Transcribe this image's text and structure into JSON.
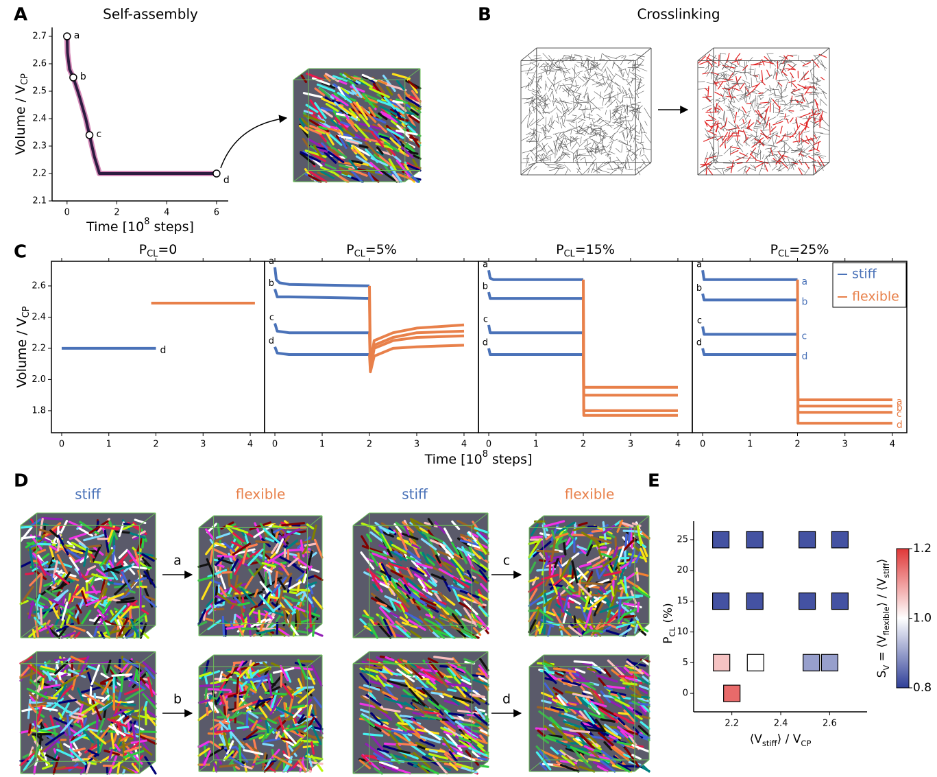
{
  "panels": {
    "labels": [
      "A",
      "B",
      "C",
      "D",
      "E"
    ]
  },
  "panel_b": {
    "title": "Crosslinking"
  },
  "panel_c": {
    "x_label": [
      "Time [10",
      "8",
      " steps]"
    ],
    "y_label": [
      "Volume / V",
      "CP"
    ]
  },
  "panel_d": {
    "headings": [
      "stiff",
      "flexible",
      "stiff",
      "flexible"
    ],
    "arrows": [
      "a",
      "b",
      "c",
      "d"
    ]
  },
  "chart_data": [
    {
      "type": "line",
      "title": "Self-assembly",
      "x_label": [
        "Time [10",
        "8",
        " steps]"
      ],
      "y_label": [
        "Volume / V",
        "CP"
      ],
      "xlim": [
        -0.6,
        6.47
      ],
      "ylim": [
        2.1,
        2.7325
      ],
      "xticks": [
        0,
        2,
        4,
        6
      ],
      "yticks": [
        2.1,
        2.2,
        2.3,
        2.4,
        2.5,
        2.6,
        2.7
      ],
      "series": [
        {
          "color": "#2d1b40",
          "x": [
            0,
            0.02,
            0.1,
            0.25,
            0.5,
            0.75,
            0.9,
            1.1,
            1.3,
            1.5,
            2,
            3,
            4,
            5,
            6
          ],
          "values": [
            2.7,
            2.64,
            2.58,
            2.55,
            2.48,
            2.4,
            2.34,
            2.26,
            2.2,
            2.2,
            2.2,
            2.2,
            2.2,
            2.2,
            2.2
          ]
        }
      ],
      "points": {
        "x": [
          0,
          0.25,
          0.9,
          6
        ],
        "values": [
          2.7,
          2.55,
          2.34,
          2.2
        ],
        "labels": [
          "a",
          "b",
          "c",
          "d"
        ]
      }
    },
    {
      "type": "line",
      "title": [
        "P",
        "CL",
        "=0"
      ],
      "xlim": [
        -0.218,
        4.305
      ],
      "ylim": [
        1.659,
        2.758
      ],
      "xticks": [
        0,
        1,
        2,
        3,
        4
      ],
      "yticks": [
        1.8,
        {
          "value": 2,
          "label": "2.0"
        },
        2.2,
        2.4,
        2.6
      ],
      "series": [
        {
          "name": "stiff",
          "color": "#4a72b8",
          "labels_at": [
            "right"
          ],
          "label_color": "#000000",
          "curves": [
            {
              "label": "d",
              "x": [
                0,
                2
              ],
              "values": [
                2.2,
                2.2
              ]
            }
          ]
        },
        {
          "name": "flexible",
          "color": "#e8804a",
          "labels_at": [],
          "curves": [
            {
              "x": [
                1.9,
                4.1
              ],
              "values": [
                2.49,
                2.49
              ]
            }
          ]
        }
      ]
    },
    {
      "type": "line",
      "title": [
        "P",
        "CL",
        "=5%"
      ],
      "xlim": [
        -0.218,
        4.305
      ],
      "ylim": [
        1.659,
        2.758
      ],
      "xticks": [
        0,
        1,
        2,
        3,
        4
      ],
      "series": [
        {
          "name": "stiff",
          "color": "#4a72b8",
          "labels_at": [
            "left"
          ],
          "curves": [
            {
              "label": "a",
              "x": [
                0,
                0.03,
                0.1,
                0.3,
                2
              ],
              "values": [
                2.72,
                2.64,
                2.62,
                2.61,
                2.6
              ]
            },
            {
              "label": "b",
              "x": [
                0,
                0.05,
                0.3,
                2
              ],
              "values": [
                2.58,
                2.53,
                2.53,
                2.52
              ]
            },
            {
              "label": "c",
              "x": [
                0,
                0.05,
                0.3,
                2
              ],
              "values": [
                2.36,
                2.31,
                2.3,
                2.3
              ]
            },
            {
              "label": "d",
              "x": [
                0,
                0.05,
                0.3,
                2
              ],
              "values": [
                2.21,
                2.17,
                2.16,
                2.16
              ]
            }
          ]
        },
        {
          "name": "flexible",
          "color": "#e8804a",
          "labels_at": [],
          "curves": [
            {
              "x": [
                2,
                2.02,
                2.1,
                2.5,
                3,
                4
              ],
              "values": [
                2.6,
                2.1,
                2.25,
                2.3,
                2.33,
                2.35
              ]
            },
            {
              "x": [
                2,
                2.02,
                2.1,
                2.5,
                3,
                4
              ],
              "values": [
                2.52,
                2.08,
                2.22,
                2.27,
                2.3,
                2.31
              ]
            },
            {
              "x": [
                2,
                2.02,
                2.1,
                2.5,
                3,
                4
              ],
              "values": [
                2.3,
                2.06,
                2.2,
                2.25,
                2.27,
                2.28
              ]
            },
            {
              "x": [
                2,
                2.02,
                2.1,
                2.5,
                3,
                4
              ],
              "values": [
                2.16,
                2.05,
                2.15,
                2.2,
                2.21,
                2.22
              ]
            }
          ]
        }
      ]
    },
    {
      "type": "line",
      "title": [
        "P",
        "CL",
        "=15%"
      ],
      "xlim": [
        -0.218,
        4.305
      ],
      "ylim": [
        1.659,
        2.758
      ],
      "xticks": [
        0,
        1,
        2,
        3,
        4
      ],
      "series": [
        {
          "name": "stiff",
          "color": "#4a72b8",
          "labels_at": [
            "left"
          ],
          "curves": [
            {
              "label": "a",
              "x": [
                0,
                0.03,
                0.1,
                2
              ],
              "values": [
                2.7,
                2.65,
                2.64,
                2.64
              ]
            },
            {
              "label": "b",
              "x": [
                0,
                0.03,
                0.1,
                2
              ],
              "values": [
                2.56,
                2.52,
                2.52,
                2.52
              ]
            },
            {
              "label": "c",
              "x": [
                0,
                0.03,
                0.1,
                2
              ],
              "values": [
                2.35,
                2.3,
                2.3,
                2.3
              ]
            },
            {
              "label": "d",
              "x": [
                0,
                0.03,
                0.1,
                2
              ],
              "values": [
                2.2,
                2.16,
                2.16,
                2.16
              ]
            }
          ]
        },
        {
          "name": "flexible",
          "color": "#e8804a",
          "labels_at": [],
          "curves": [
            {
              "x": [
                2,
                2.01,
                4
              ],
              "values": [
                2.64,
                1.95,
                1.95
              ]
            },
            {
              "x": [
                2,
                2.01,
                4
              ],
              "values": [
                2.52,
                1.9,
                1.9
              ]
            },
            {
              "x": [
                2,
                2.01,
                4
              ],
              "values": [
                2.3,
                1.8,
                1.8
              ]
            },
            {
              "x": [
                2,
                2.01,
                4
              ],
              "values": [
                2.16,
                1.77,
                1.77
              ]
            }
          ]
        }
      ]
    },
    {
      "type": "line",
      "title": [
        "P",
        "CL",
        "=25%"
      ],
      "xlim": [
        -0.218,
        4.305
      ],
      "ylim": [
        1.659,
        2.758
      ],
      "xticks": [
        0,
        1,
        2,
        3,
        4
      ],
      "legend": "upper right",
      "series": [
        {
          "name": "stiff",
          "color": "#4a72b8",
          "labels_at": [
            "left",
            "right"
          ],
          "curves": [
            {
              "label": "a",
              "x": [
                0,
                0.03,
                0.1,
                2
              ],
              "values": [
                2.7,
                2.64,
                2.64,
                2.64
              ]
            },
            {
              "label": "b",
              "x": [
                0,
                0.03,
                0.1,
                2
              ],
              "values": [
                2.55,
                2.51,
                2.51,
                2.51
              ]
            },
            {
              "label": "c",
              "x": [
                0,
                0.03,
                0.1,
                2
              ],
              "values": [
                2.34,
                2.29,
                2.29,
                2.29
              ]
            },
            {
              "label": "d",
              "x": [
                0,
                0.03,
                0.1,
                2
              ],
              "values": [
                2.2,
                2.16,
                2.16,
                2.16
              ]
            }
          ]
        },
        {
          "name": "flexible",
          "color": "#e8804a",
          "labels_at": [
            "right"
          ],
          "curves": [
            {
              "label": "a",
              "x": [
                2,
                2.01,
                4
              ],
              "values": [
                2.64,
                1.87,
                1.87
              ]
            },
            {
              "label": "b",
              "x": [
                2,
                2.01,
                4
              ],
              "values": [
                2.51,
                1.83,
                1.83
              ]
            },
            {
              "label": "c",
              "x": [
                2,
                2.01,
                4
              ],
              "values": [
                2.29,
                1.79,
                1.79
              ]
            },
            {
              "label": "d",
              "x": [
                2,
                2.01,
                4
              ],
              "values": [
                2.16,
                1.72,
                1.72
              ]
            }
          ]
        }
      ]
    },
    {
      "type": "scatter",
      "x_label": [
        "⟨V",
        "stiff",
        "⟩ / V",
        "CP"
      ],
      "y_label": [
        "P",
        "CL",
        " (%)"
      ],
      "xlim": [
        2.044,
        2.753
      ],
      "ylim": [
        -3,
        28
      ],
      "xticks": [
        2.2,
        2.4,
        2.6
      ],
      "yticks": [
        0,
        5,
        10,
        15,
        20,
        25
      ],
      "x": [
        2.155,
        2.294,
        2.508,
        2.642,
        2.155,
        2.294,
        2.508,
        2.642,
        2.158,
        2.297,
        2.525,
        2.6,
        2.2
      ],
      "values": [
        25,
        25,
        25,
        25,
        15,
        15,
        15,
        15,
        5,
        5,
        5,
        5,
        0
      ],
      "color_values": [
        0.82,
        0.82,
        0.82,
        0.82,
        0.82,
        0.82,
        0.82,
        0.82,
        1.06,
        1.0,
        0.9,
        0.9,
        1.15
      ],
      "cmap": [
        "#2f3f98",
        "#ffffff",
        "#e03838"
      ],
      "clim": [
        0.8,
        1.2
      ],
      "cticks": [
        0.8,
        {
          "value": 1,
          "label": "1.0"
        },
        1.2
      ],
      "colorbar_label": [
        "S",
        "V",
        " = ⟨V",
        "flexible",
        "⟩ / ⟨V",
        "stiff",
        "⟩"
      ]
    }
  ]
}
